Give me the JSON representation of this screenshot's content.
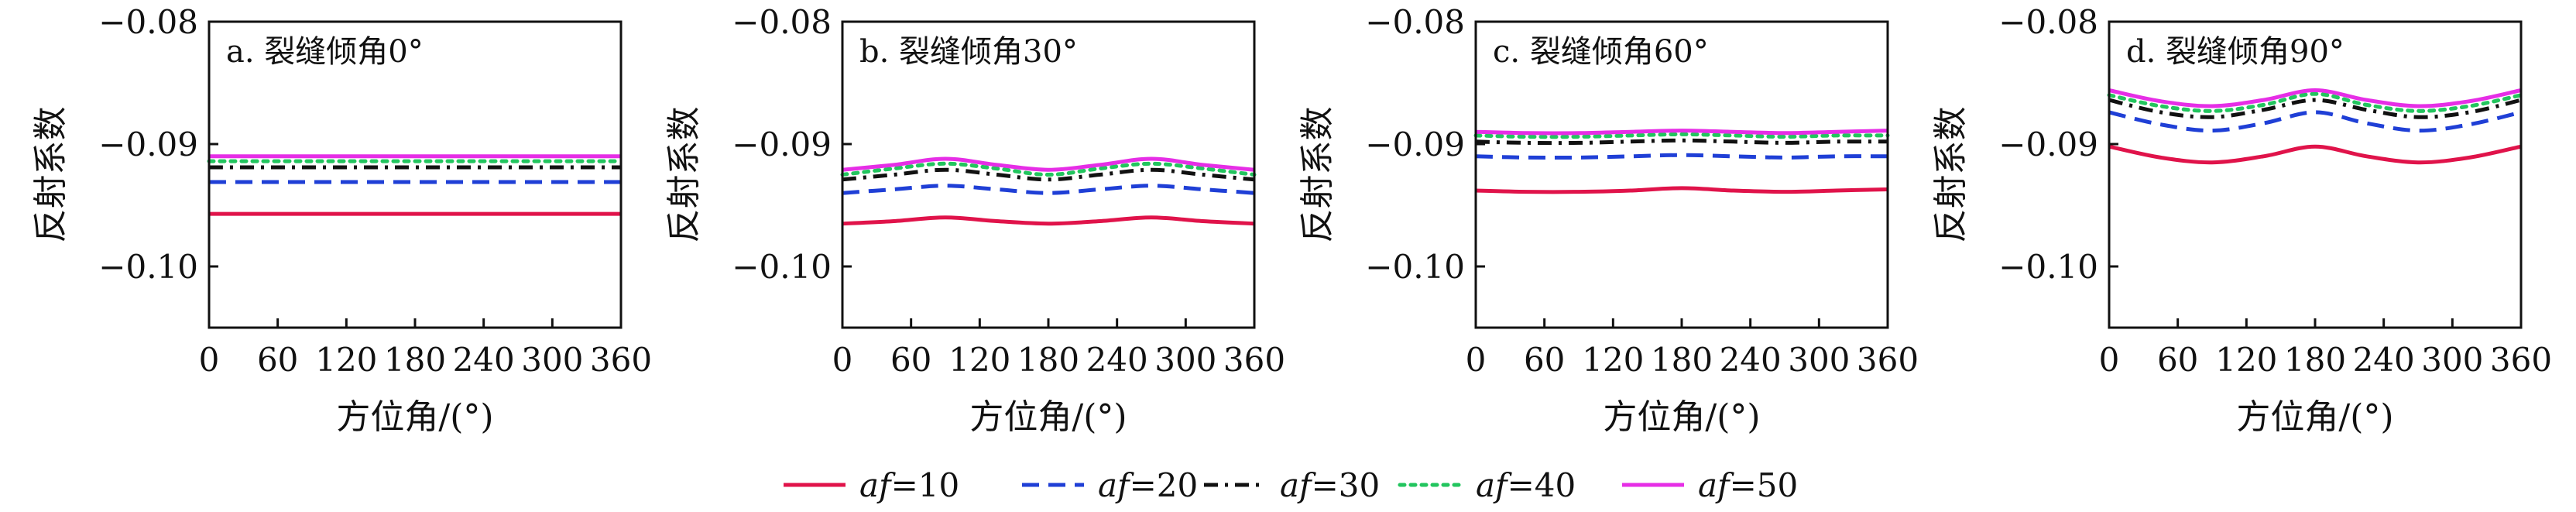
{
  "figure": {
    "x_axis_label": "方位角/(°)",
    "y_axis_label": "反射系数"
  },
  "legend": [
    {
      "prefix": "af",
      "suffix": "=10",
      "color": "#e0134a",
      "dash": "solid"
    },
    {
      "prefix": "af",
      "suffix": "=20",
      "color": "#1f3fd6",
      "dash": "dashed"
    },
    {
      "prefix": "af",
      "suffix": "=30",
      "color": "#111111",
      "dash": "dash-dot"
    },
    {
      "prefix": "af",
      "suffix": "=40",
      "color": "#22c55e",
      "dash": "dotted"
    },
    {
      "prefix": "af",
      "suffix": "=50",
      "color": "#e62ee6",
      "dash": "solid"
    }
  ],
  "chart_data": [
    {
      "type": "line",
      "title": "a. 裂缝倾角0°",
      "xlabel": "方位角/(°)",
      "ylabel": "反射系数",
      "xlim": [
        0,
        360
      ],
      "ylim": [
        -0.105,
        -0.08
      ],
      "x_ticks": [
        0,
        60,
        120,
        180,
        240,
        300,
        360
      ],
      "y_ticks": [
        -0.08,
        -0.09,
        -0.1
      ],
      "y_tick_labels": [
        "−0.08",
        "−0.09",
        "−0.10"
      ],
      "grid": false,
      "x": [
        0,
        45,
        90,
        135,
        180,
        225,
        270,
        315,
        360
      ],
      "series": [
        {
          "name": "af=10",
          "values": [
            -0.0957,
            -0.0957,
            -0.0957,
            -0.0957,
            -0.0957,
            -0.0957,
            -0.0957,
            -0.0957,
            -0.0957
          ]
        },
        {
          "name": "af=20",
          "values": [
            -0.0931,
            -0.0931,
            -0.0931,
            -0.0931,
            -0.0931,
            -0.0931,
            -0.0931,
            -0.0931,
            -0.0931
          ]
        },
        {
          "name": "af=30",
          "values": [
            -0.0919,
            -0.0919,
            -0.0919,
            -0.0919,
            -0.0919,
            -0.0919,
            -0.0919,
            -0.0919,
            -0.0919
          ]
        },
        {
          "name": "af=40",
          "values": [
            -0.0914,
            -0.0914,
            -0.0914,
            -0.0914,
            -0.0914,
            -0.0914,
            -0.0914,
            -0.0914,
            -0.0914
          ]
        },
        {
          "name": "af=50",
          "values": [
            -0.091,
            -0.091,
            -0.091,
            -0.091,
            -0.091,
            -0.091,
            -0.091,
            -0.091,
            -0.091
          ]
        }
      ]
    },
    {
      "type": "line",
      "title": "b. 裂缝倾角30°",
      "xlabel": "方位角/(°)",
      "ylabel": "反射系数",
      "xlim": [
        0,
        360
      ],
      "ylim": [
        -0.105,
        -0.08
      ],
      "x_ticks": [
        0,
        60,
        120,
        180,
        240,
        300,
        360
      ],
      "y_ticks": [
        -0.08,
        -0.09,
        -0.1
      ],
      "y_tick_labels": [
        "−0.08",
        "−0.09",
        "−0.10"
      ],
      "grid": false,
      "x": [
        0,
        45,
        90,
        135,
        180,
        225,
        270,
        315,
        360
      ],
      "series": [
        {
          "name": "af=10",
          "values": [
            -0.0965,
            -0.0963,
            -0.096,
            -0.0963,
            -0.0965,
            -0.0963,
            -0.096,
            -0.0963,
            -0.0965
          ]
        },
        {
          "name": "af=20",
          "values": [
            -0.094,
            -0.0937,
            -0.0934,
            -0.0937,
            -0.094,
            -0.0937,
            -0.0934,
            -0.0937,
            -0.094
          ]
        },
        {
          "name": "af=30",
          "values": [
            -0.0929,
            -0.0925,
            -0.0921,
            -0.0925,
            -0.0929,
            -0.0925,
            -0.0921,
            -0.0925,
            -0.0929
          ]
        },
        {
          "name": "af=40",
          "values": [
            -0.0925,
            -0.092,
            -0.0916,
            -0.092,
            -0.0925,
            -0.092,
            -0.0916,
            -0.092,
            -0.0925
          ]
        },
        {
          "name": "af=50",
          "values": [
            -0.0921,
            -0.0917,
            -0.0912,
            -0.0917,
            -0.0921,
            -0.0917,
            -0.0912,
            -0.0917,
            -0.0921
          ]
        }
      ]
    },
    {
      "type": "line",
      "title": "c. 裂缝倾角60°",
      "xlabel": "方位角/(°)",
      "ylabel": "反射系数",
      "xlim": [
        0,
        360
      ],
      "ylim": [
        -0.105,
        -0.08
      ],
      "x_ticks": [
        0,
        60,
        120,
        180,
        240,
        300,
        360
      ],
      "y_ticks": [
        -0.08,
        -0.09,
        -0.1
      ],
      "y_tick_labels": [
        "−0.08",
        "−0.09",
        "−0.10"
      ],
      "grid": false,
      "x": [
        0,
        45,
        90,
        135,
        180,
        225,
        270,
        315,
        360
      ],
      "series": [
        {
          "name": "af=10",
          "values": [
            -0.0938,
            -0.0939,
            -0.0939,
            -0.0938,
            -0.0936,
            -0.0938,
            -0.0939,
            -0.0938,
            -0.0937
          ]
        },
        {
          "name": "af=20",
          "values": [
            -0.091,
            -0.0911,
            -0.0911,
            -0.091,
            -0.0909,
            -0.091,
            -0.0911,
            -0.091,
            -0.091
          ]
        },
        {
          "name": "af=30",
          "values": [
            -0.0898,
            -0.0899,
            -0.0899,
            -0.0898,
            -0.0897,
            -0.0898,
            -0.0899,
            -0.0898,
            -0.0898
          ]
        },
        {
          "name": "af=40",
          "values": [
            -0.0893,
            -0.0894,
            -0.0894,
            -0.0893,
            -0.0892,
            -0.0893,
            -0.0894,
            -0.0893,
            -0.0893
          ]
        },
        {
          "name": "af=50",
          "values": [
            -0.089,
            -0.0891,
            -0.0891,
            -0.089,
            -0.0889,
            -0.089,
            -0.0891,
            -0.089,
            -0.0889
          ]
        }
      ]
    },
    {
      "type": "line",
      "title": "d. 裂缝倾角90°",
      "xlabel": "方位角/(°)",
      "ylabel": "反射系数",
      "xlim": [
        0,
        360
      ],
      "ylim": [
        -0.105,
        -0.08
      ],
      "x_ticks": [
        0,
        60,
        120,
        180,
        240,
        300,
        360
      ],
      "y_ticks": [
        -0.08,
        -0.09,
        -0.1
      ],
      "y_tick_labels": [
        "−0.08",
        "−0.09",
        "−0.10"
      ],
      "grid": false,
      "x": [
        0,
        45,
        90,
        135,
        180,
        225,
        270,
        315,
        360
      ],
      "series": [
        {
          "name": "af=10",
          "values": [
            -0.0902,
            -0.0911,
            -0.0915,
            -0.091,
            -0.0902,
            -0.091,
            -0.0915,
            -0.0911,
            -0.0902
          ]
        },
        {
          "name": "af=20",
          "values": [
            -0.0874,
            -0.0884,
            -0.0889,
            -0.0883,
            -0.0874,
            -0.0883,
            -0.0889,
            -0.0884,
            -0.0874
          ]
        },
        {
          "name": "af=30",
          "values": [
            -0.0864,
            -0.0874,
            -0.0878,
            -0.0872,
            -0.0864,
            -0.0872,
            -0.0878,
            -0.0874,
            -0.0864
          ]
        },
        {
          "name": "af=40",
          "values": [
            -0.086,
            -0.0869,
            -0.0873,
            -0.0868,
            -0.0859,
            -0.0868,
            -0.0873,
            -0.0869,
            -0.086
          ]
        },
        {
          "name": "af=50",
          "values": [
            -0.0856,
            -0.0865,
            -0.0869,
            -0.0864,
            -0.0856,
            -0.0864,
            -0.0869,
            -0.0865,
            -0.0856
          ]
        }
      ]
    }
  ]
}
